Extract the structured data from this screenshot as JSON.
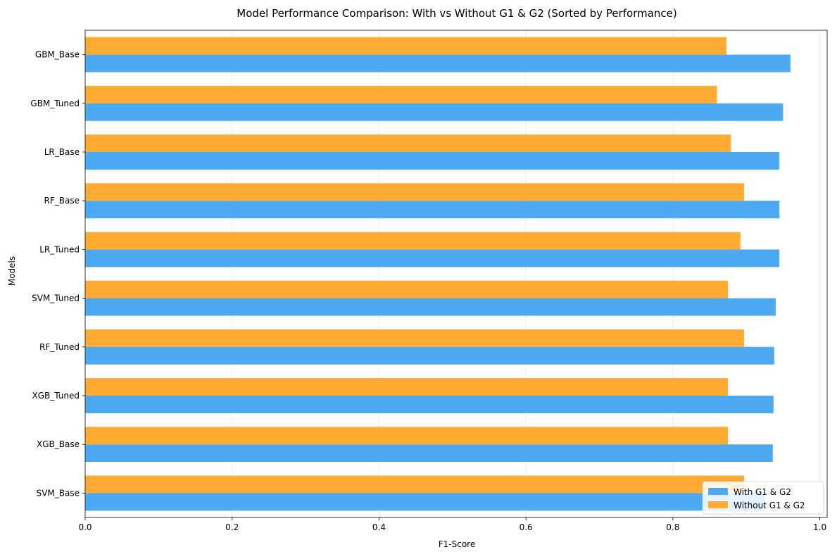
{
  "chart_data": {
    "type": "bar",
    "orientation": "horizontal",
    "title": "Model Performance Comparison: With vs Without G1 & G2 (Sorted by Performance)",
    "xlabel": "F1-Score",
    "ylabel": "Models",
    "xlim": [
      0,
      1.01
    ],
    "xticks": [
      0.0,
      0.2,
      0.4,
      0.6,
      0.8,
      1.0
    ],
    "xtick_labels": [
      "0.0",
      "0.2",
      "0.4",
      "0.6",
      "0.8",
      "1.0"
    ],
    "grid": "x-axis, light",
    "legend_position": "lower-right",
    "categories": [
      "GBM_Base",
      "GBM_Tuned",
      "LR_Base",
      "RF_Base",
      "LR_Tuned",
      "SVM_Tuned",
      "RF_Tuned",
      "XGB_Tuned",
      "XGB_Base",
      "SVM_Base"
    ],
    "series": [
      {
        "name": "With G1 & G2",
        "color": "#4DAAF2",
        "values": [
          0.96,
          0.95,
          0.945,
          0.945,
          0.945,
          0.94,
          0.938,
          0.937,
          0.936,
          0.925
        ]
      },
      {
        "name": "Without G1 & G2",
        "color": "#FFAA33",
        "values": [
          0.873,
          0.86,
          0.879,
          0.897,
          0.892,
          0.875,
          0.897,
          0.875,
          0.875,
          0.897
        ]
      }
    ]
  }
}
